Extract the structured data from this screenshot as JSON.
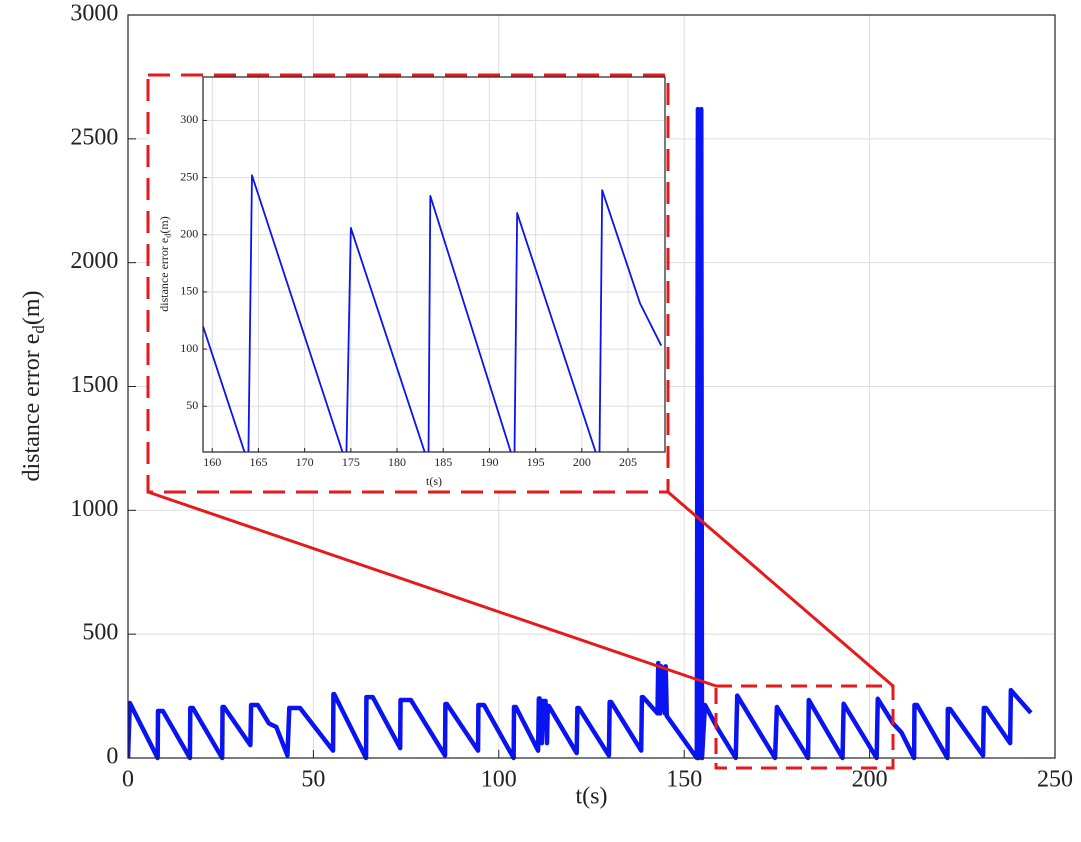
{
  "chart_data": [
    {
      "type": "line",
      "xlabel": "t(s)",
      "ylabel": [
        "distance error e",
        "d",
        "(m)"
      ],
      "xlim": [
        0,
        250
      ],
      "ylim": [
        0,
        3000
      ],
      "xticks": [
        0,
        50,
        100,
        150,
        200,
        250
      ],
      "yticks": [
        0,
        500,
        1000,
        1500,
        2000,
        2500,
        3000
      ],
      "grid": true,
      "color": "#0a14f0",
      "x": [
        0,
        0.5,
        8,
        8.1,
        9.4,
        16.7,
        16.8,
        17.5,
        25.4,
        25.5,
        25.9,
        33,
        33.2,
        35,
        38,
        40,
        43,
        43.5,
        46.4,
        55.3,
        55.4,
        55.6,
        64.2,
        64.3,
        66,
        73.4,
        73.5,
        76.3,
        85.5,
        85.6,
        86,
        94.4,
        94.5,
        96,
        104,
        104.1,
        104.6,
        110.6,
        110.8,
        111,
        111.6,
        111.8,
        112.6,
        113,
        113.2,
        113.5,
        121,
        121.2,
        121.6,
        129.7,
        129.9,
        130.3,
        138.4,
        138.6,
        138.9,
        142.8,
        143,
        143.5,
        143.8,
        144.8,
        145,
        145.3,
        153.4,
        153.7,
        153.9,
        154.6,
        154.8,
        155.6,
        159,
        163.9,
        164.3,
        174.5,
        175,
        183.4,
        183.6,
        192.7,
        193,
        201.9,
        202.2,
        206.3,
        208.6,
        212,
        212.1,
        212.8,
        221,
        221.1,
        221.7,
        230.6,
        230.8,
        231.4,
        237.9,
        238.1,
        243.5
      ],
      "values": [
        0,
        222,
        0,
        190,
        190,
        0,
        202,
        202,
        0,
        206,
        206,
        52,
        214,
        214,
        140,
        125,
        10,
        202,
        202,
        30,
        258,
        258,
        0,
        246,
        246,
        40,
        234,
        234,
        10,
        218,
        218,
        30,
        214,
        214,
        0,
        206,
        206,
        30,
        240,
        240,
        60,
        230,
        230,
        60,
        210,
        210,
        20,
        202,
        202,
        10,
        226,
        226,
        30,
        246,
        246,
        180,
        383,
        180,
        370,
        180,
        370,
        170,
        0,
        2620,
        0,
        2620,
        0,
        214,
        120,
        0,
        252,
        0,
        206,
        0,
        234,
        0,
        219,
        0,
        239,
        140,
        103,
        0,
        214,
        214,
        0,
        198,
        198,
        10,
        202,
        202,
        60,
        274,
        182
      ]
    },
    {
      "type": "line",
      "xlabel": "t(s)",
      "ylabel": [
        "distance error e",
        "d",
        "(m)"
      ],
      "xlim": [
        159,
        209
      ],
      "ylim": [
        10,
        338
      ],
      "xticks": [
        160,
        165,
        170,
        175,
        180,
        185,
        190,
        195,
        200,
        205
      ],
      "yticks": [
        50,
        100,
        150,
        200,
        250,
        300
      ],
      "grid": true,
      "color": "#0a14f0",
      "x": [
        159,
        163.9,
        164.3,
        174.5,
        175,
        183.4,
        183.6,
        192.7,
        193,
        201.9,
        202.2,
        206.3,
        208.6
      ],
      "values": [
        120,
        0,
        252,
        0,
        206,
        0,
        234,
        0,
        219,
        0,
        239,
        140,
        103
      ]
    }
  ]
}
